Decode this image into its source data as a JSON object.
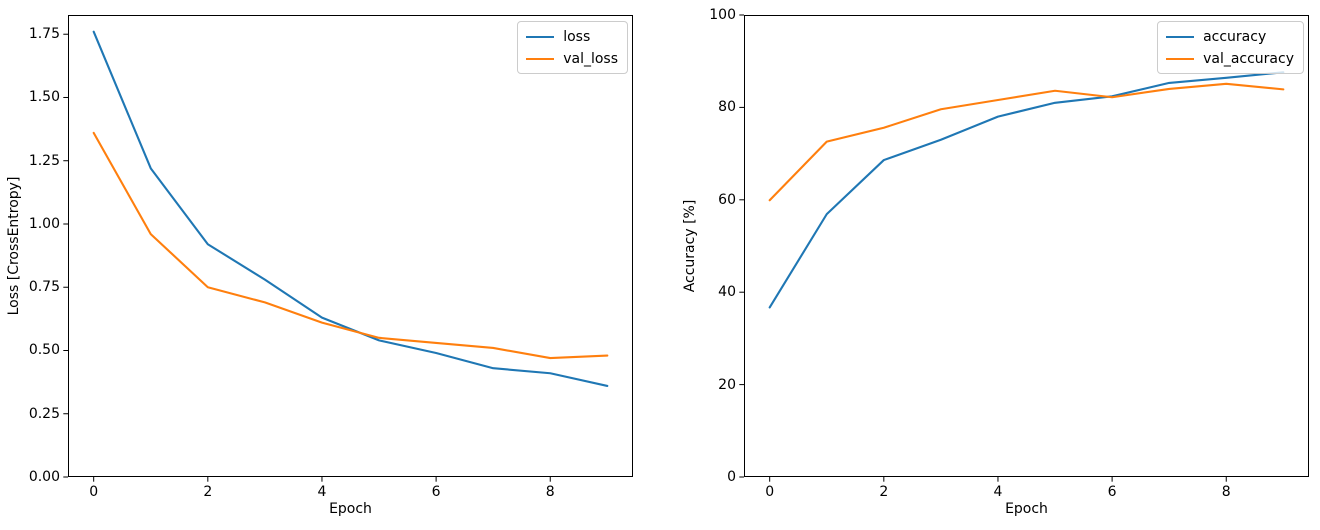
{
  "figure": {
    "background": "#ffffff",
    "text_color": "#000000",
    "spine_color": "#000000",
    "legend_border_color": "#cccccc"
  },
  "chart_data": [
    {
      "type": "line",
      "title": "",
      "xlabel": "Epoch",
      "ylabel": "Loss [CrossEntropy]",
      "x": [
        0,
        1,
        2,
        3,
        4,
        5,
        6,
        7,
        8,
        9
      ],
      "xlim": [
        -0.45,
        9.45
      ],
      "ylim": [
        0,
        1.826
      ],
      "xticks": [
        0,
        2,
        4,
        6,
        8
      ],
      "xtick_labels": [
        "0",
        "2",
        "4",
        "6",
        "8"
      ],
      "yticks": [
        0,
        0.25,
        0.5,
        0.75,
        1.0,
        1.25,
        1.5,
        1.75
      ],
      "ytick_labels": [
        "0.00",
        "0.25",
        "0.50",
        "0.75",
        "1.00",
        "1.25",
        "1.50",
        "1.75"
      ],
      "grid": false,
      "legend_position": "upper right",
      "series": [
        {
          "name": "loss",
          "color": "#1f77b4",
          "values": [
            1.76,
            1.22,
            0.92,
            0.78,
            0.63,
            0.54,
            0.49,
            0.43,
            0.41,
            0.36
          ]
        },
        {
          "name": "val_loss",
          "color": "#ff7f0e",
          "values": [
            1.36,
            0.96,
            0.75,
            0.69,
            0.61,
            0.55,
            0.53,
            0.51,
            0.47,
            0.48
          ]
        }
      ]
    },
    {
      "type": "line",
      "title": "",
      "xlabel": "Epoch",
      "ylabel": "Accuracy [%]",
      "x": [
        0,
        1,
        2,
        3,
        4,
        5,
        6,
        7,
        8,
        9
      ],
      "xlim": [
        -0.45,
        9.45
      ],
      "ylim": [
        0,
        100
      ],
      "xticks": [
        0,
        2,
        4,
        6,
        8
      ],
      "xtick_labels": [
        "0",
        "2",
        "4",
        "6",
        "8"
      ],
      "yticks": [
        0,
        20,
        40,
        60,
        80,
        100
      ],
      "ytick_labels": [
        "0",
        "20",
        "40",
        "60",
        "80",
        "100"
      ],
      "grid": false,
      "legend_position": "upper right",
      "series": [
        {
          "name": "accuracy",
          "color": "#1f77b4",
          "values": [
            36.7,
            56.9,
            68.6,
            73.0,
            78.0,
            81.0,
            82.4,
            85.3,
            86.4,
            87.6
          ]
        },
        {
          "name": "val_accuracy",
          "color": "#ff7f0e",
          "values": [
            59.9,
            72.6,
            75.6,
            79.6,
            81.6,
            83.6,
            82.2,
            84.0,
            85.1,
            83.9
          ]
        }
      ]
    }
  ]
}
